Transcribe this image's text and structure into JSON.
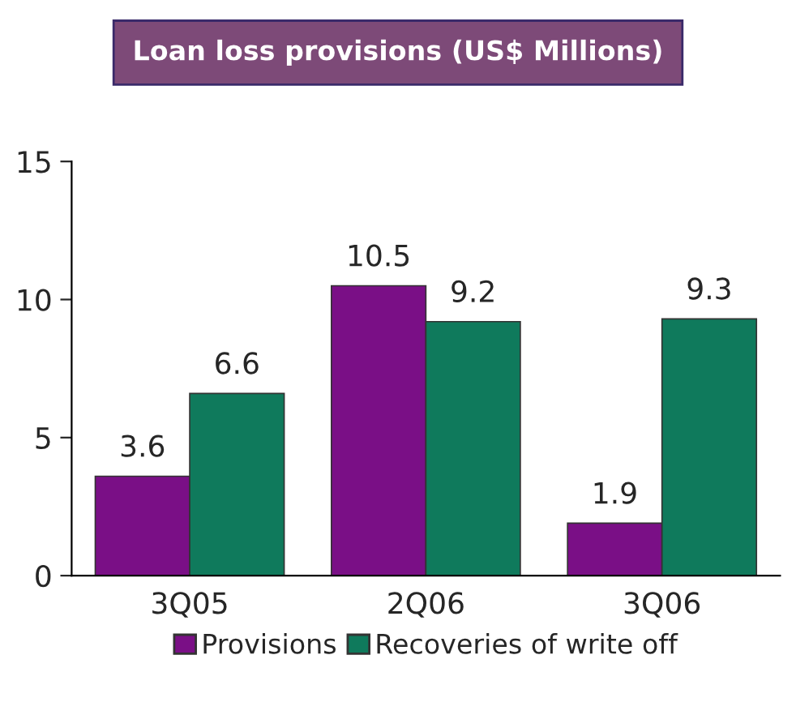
{
  "chart_data": {
    "type": "bar",
    "title": "Loan loss provisions (US$ Millions)",
    "categories": [
      "3Q05",
      "2Q06",
      "3Q06"
    ],
    "series": [
      {
        "name": "Provisions",
        "color": "#7a0f86",
        "values": [
          3.6,
          10.5,
          1.9
        ]
      },
      {
        "name": "Recoveries of write off",
        "color": "#0f7a5c",
        "values": [
          6.6,
          9.2,
          9.3
        ]
      }
    ],
    "ylim": [
      0,
      15
    ],
    "yticks": [
      0,
      5,
      10,
      15
    ],
    "data_labels": true,
    "grid": false,
    "legend": "bottom"
  }
}
